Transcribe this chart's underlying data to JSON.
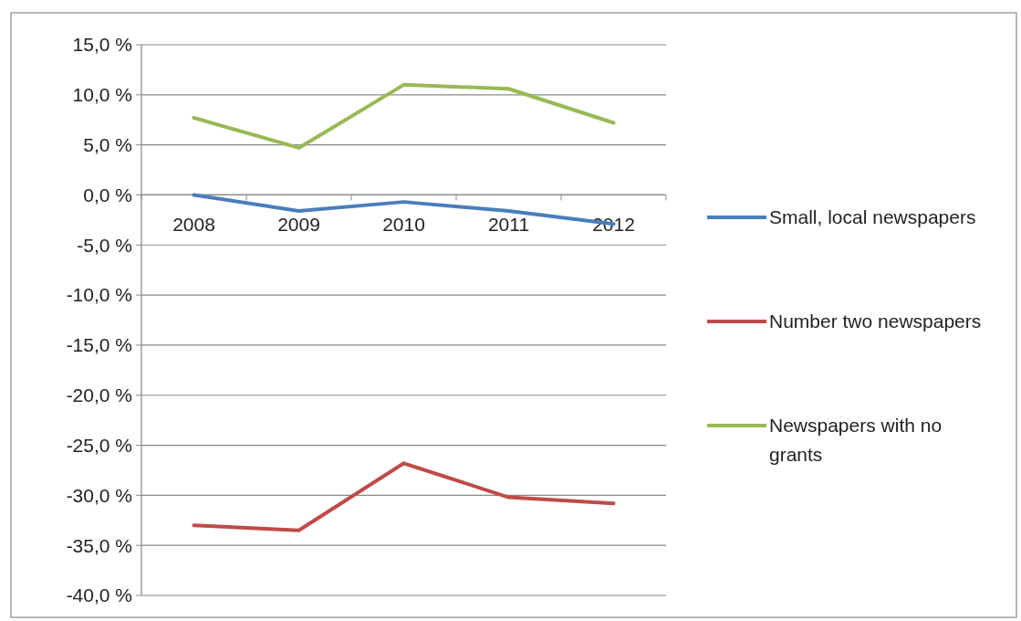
{
  "chart_data": {
    "type": "line",
    "categories": [
      "2008",
      "2009",
      "2010",
      "2011",
      "2012"
    ],
    "series": [
      {
        "name": "Small, local newspapers",
        "color": "#4a7ebb",
        "values": [
          0.0,
          -1.6,
          -0.7,
          -1.6,
          -2.9
        ]
      },
      {
        "name": "Number two newspapers",
        "color": "#be4b48",
        "values": [
          -33.0,
          -33.5,
          -26.8,
          -30.2,
          -30.8
        ]
      },
      {
        "name": "Newspapers with no grants",
        "color": "#98b954",
        "values": [
          7.7,
          4.7,
          11.0,
          10.6,
          7.2
        ]
      }
    ],
    "ylim": [
      -40,
      15
    ],
    "yticks": [
      {
        "value": 15,
        "label": "15,0 %"
      },
      {
        "value": 10,
        "label": "10,0 %"
      },
      {
        "value": 5,
        "label": "5,0 %"
      },
      {
        "value": 0,
        "label": "0,0 %"
      },
      {
        "value": -5,
        "label": "-5,0 %"
      },
      {
        "value": -10,
        "label": "-10,0 %"
      },
      {
        "value": -15,
        "label": "-15,0 %"
      },
      {
        "value": -20,
        "label": "-20,0 %"
      },
      {
        "value": -25,
        "label": "-25,0 %"
      },
      {
        "value": -30,
        "label": "-30,0 %"
      },
      {
        "value": -35,
        "label": "-35,0 %"
      },
      {
        "value": -40,
        "label": "-40,0 %"
      }
    ],
    "grid": "y",
    "legend": "right",
    "marker": "none",
    "line_style": "solid"
  }
}
